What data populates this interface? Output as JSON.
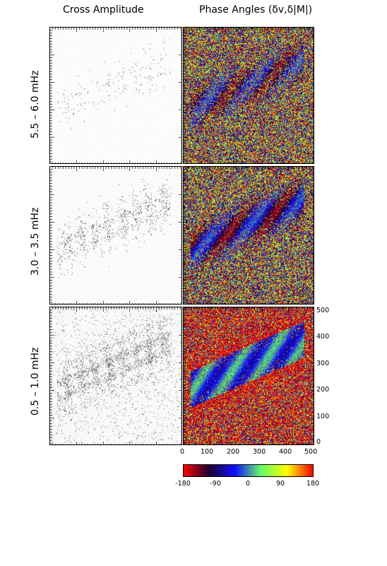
{
  "column_titles": {
    "amplitude": "Cross Amplitude",
    "phase": "Phase Angles (δv,δ|M|)"
  },
  "row_labels": [
    "5.5 – 6.0 mHz",
    "3.0 – 3.5 mHz",
    "0.5 – 1.0 mHz"
  ],
  "chart_data": {
    "type": "heatmap",
    "panels": [
      {
        "row": "5.5 – 6.0 mHz",
        "column": "Cross Amplitude",
        "colormap": "inverted grayscale"
      },
      {
        "row": "5.5 – 6.0 mHz",
        "column": "Phase Angles (δv,δ|M|)",
        "colormap": "cyclic phase"
      },
      {
        "row": "3.0 – 3.5 mHz",
        "column": "Cross Amplitude",
        "colormap": "inverted grayscale"
      },
      {
        "row": "3.0 – 3.5 mHz",
        "column": "Phase Angles (δv,δ|M|)",
        "colormap": "cyclic phase"
      },
      {
        "row": "0.5 – 1.0 mHz",
        "column": "Cross Amplitude",
        "colormap": "inverted grayscale"
      },
      {
        "row": "0.5 – 1.0 mHz",
        "column": "Phase Angles (δv,δ|M|)",
        "colormap": "cyclic phase"
      }
    ],
    "x_axis": {
      "range": [
        0,
        500
      ],
      "ticks": [
        "0",
        "100",
        "200",
        "300",
        "400",
        "500"
      ]
    },
    "y_axis": {
      "range": [
        0,
        500
      ],
      "ticks": [
        "0",
        "100",
        "200",
        "300",
        "400",
        "500"
      ],
      "position": "right"
    },
    "colorbar": {
      "range": [
        -180,
        180
      ],
      "tick_labels": [
        "-180",
        "-90",
        "0",
        "90",
        "180"
      ],
      "colors": [
        "#ff0000",
        "#1a0033",
        "#1010ff",
        "#66ff66",
        "#ffff00",
        "#ff0000"
      ]
    }
  }
}
